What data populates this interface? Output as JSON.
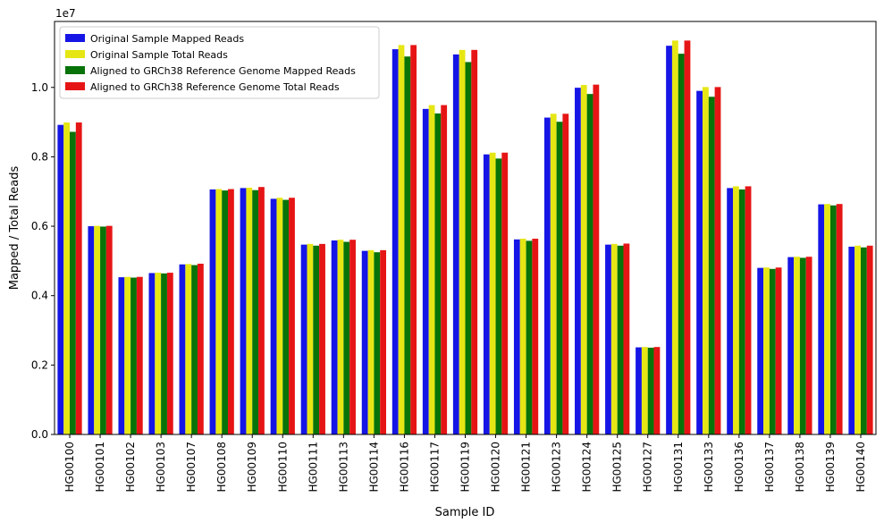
{
  "chart_data": {
    "type": "bar",
    "xlabel": "Sample ID",
    "ylabel": "Mapped / Total Reads",
    "y_scale_label": "1e7",
    "ylim": [
      0,
      11900000
    ],
    "yticks": [
      0,
      2000000,
      4000000,
      6000000,
      8000000,
      10000000
    ],
    "ytick_labels": [
      "0.0",
      "0.2",
      "0.4",
      "0.6",
      "0.8",
      "1.0"
    ],
    "legend_position": "top-left",
    "grid": false,
    "categories": [
      "HG00100",
      "HG00101",
      "HG00102",
      "HG00103",
      "HG00107",
      "HG00108",
      "HG00109",
      "HG00110",
      "HG00111",
      "HG00113",
      "HG00114",
      "HG00116",
      "HG00117",
      "HG00119",
      "HG00120",
      "HG00121",
      "HG00123",
      "HG00124",
      "HG00125",
      "HG00127",
      "HG00131",
      "HG00133",
      "HG00136",
      "HG00137",
      "HG00138",
      "HG00139",
      "HG00140"
    ],
    "series": [
      {
        "name": "Original Sample Mapped Reads",
        "color": "#1515e6",
        "values": [
          8920000,
          6000000,
          4530000,
          4650000,
          4900000,
          7060000,
          7100000,
          6790000,
          5470000,
          5590000,
          5290000,
          11100000,
          9380000,
          10950000,
          8070000,
          5620000,
          9130000,
          9990000,
          5470000,
          2510000,
          11200000,
          9900000,
          7100000,
          4800000,
          5110000,
          6630000,
          5410000
        ]
      },
      {
        "name": "Original Sample Total Reads",
        "color": "#e6e615",
        "values": [
          8990000,
          6010000,
          4540000,
          4660000,
          4910000,
          7070000,
          7110000,
          6820000,
          5490000,
          5610000,
          5310000,
          11220000,
          9490000,
          11080000,
          8120000,
          5640000,
          9240000,
          10070000,
          5490000,
          2520000,
          11350000,
          10010000,
          7150000,
          4810000,
          5120000,
          6640000,
          5440000
        ]
      },
      {
        "name": "Aligned to GRCh38 Reference Genome Mapped Reads",
        "color": "#087308",
        "values": [
          8720000,
          5990000,
          4520000,
          4640000,
          4880000,
          7030000,
          7040000,
          6760000,
          5440000,
          5550000,
          5250000,
          10890000,
          9250000,
          10730000,
          7950000,
          5580000,
          9010000,
          9810000,
          5440000,
          2500000,
          10970000,
          9730000,
          7060000,
          4770000,
          5090000,
          6600000,
          5390000
        ]
      },
      {
        "name": "Aligned to GRCh38 Reference Genome Total Reads",
        "color": "#e61515",
        "values": [
          8990000,
          6010000,
          4540000,
          4660000,
          4920000,
          7070000,
          7130000,
          6820000,
          5490000,
          5610000,
          5310000,
          11220000,
          9490000,
          11080000,
          8120000,
          5640000,
          9240000,
          10080000,
          5500000,
          2520000,
          11350000,
          10010000,
          7150000,
          4810000,
          5120000,
          6640000,
          5440000
        ]
      }
    ]
  }
}
